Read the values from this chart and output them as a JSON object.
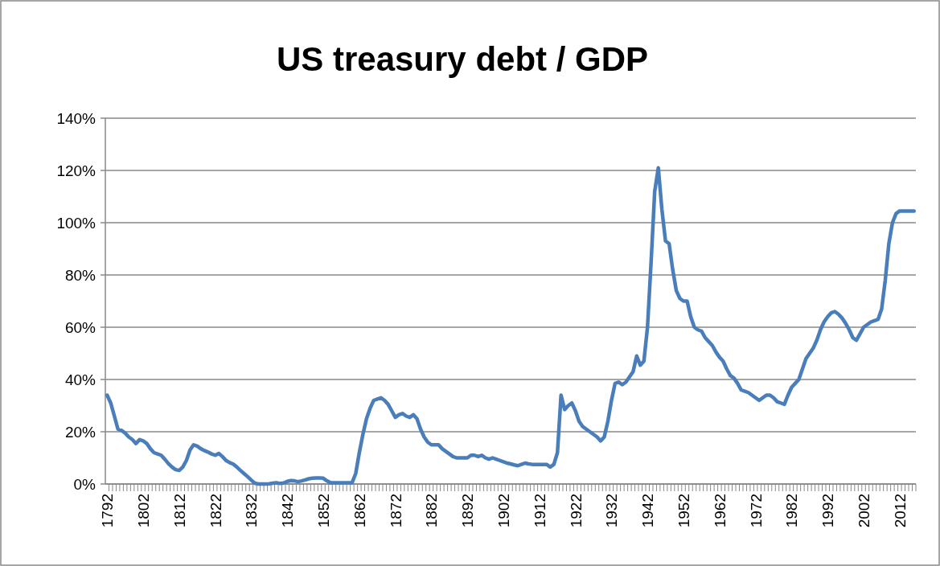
{
  "chart_data": {
    "type": "line",
    "title": "US treasury debt / GDP",
    "categories": [
      "1792",
      null,
      null,
      null,
      null,
      null,
      null,
      null,
      null,
      null,
      "1802",
      null,
      null,
      null,
      null,
      null,
      null,
      null,
      null,
      null,
      "1812",
      null,
      null,
      null,
      null,
      null,
      null,
      null,
      null,
      null,
      "1822",
      null,
      null,
      null,
      null,
      null,
      null,
      null,
      null,
      null,
      "1832",
      null,
      null,
      null,
      null,
      null,
      null,
      null,
      null,
      null,
      "1842",
      null,
      null,
      null,
      null,
      null,
      null,
      null,
      null,
      null,
      "1852",
      null,
      null,
      null,
      null,
      null,
      null,
      null,
      null,
      null,
      "1862",
      null,
      null,
      null,
      null,
      null,
      null,
      null,
      null,
      null,
      "1872",
      null,
      null,
      null,
      null,
      null,
      null,
      null,
      null,
      null,
      "1882",
      null,
      null,
      null,
      null,
      null,
      null,
      null,
      null,
      null,
      "1892",
      null,
      null,
      null,
      null,
      null,
      null,
      null,
      null,
      null,
      "1902",
      null,
      null,
      null,
      null,
      null,
      null,
      null,
      null,
      null,
      "1912",
      null,
      null,
      null,
      null,
      null,
      null,
      null,
      null,
      null,
      "1922",
      null,
      null,
      null,
      null,
      null,
      null,
      null,
      null,
      null,
      "1932",
      null,
      null,
      null,
      null,
      null,
      null,
      null,
      null,
      null,
      "1942",
      null,
      null,
      null,
      null,
      null,
      null,
      null,
      null,
      null,
      "1952",
      null,
      null,
      null,
      null,
      null,
      null,
      null,
      null,
      null,
      "1962",
      null,
      null,
      null,
      null,
      null,
      null,
      null,
      null,
      null,
      "1972",
      null,
      null,
      null,
      null,
      null,
      null,
      null,
      null,
      null,
      "1982",
      null,
      null,
      null,
      null,
      null,
      null,
      null,
      null,
      null,
      "1992",
      null,
      null,
      null,
      null,
      null,
      null,
      null,
      null,
      null,
      "2002",
      null,
      null,
      null,
      null,
      null,
      null,
      null,
      null,
      null,
      "2012",
      null,
      null,
      null,
      null
    ],
    "series": [
      {
        "color": "#4a7ebb",
        "values": [
          34,
          31,
          26,
          21,
          20.5,
          19.5,
          18,
          17,
          15.5,
          17,
          16.5,
          15.5,
          13.5,
          12,
          11.5,
          11,
          9.5,
          7.8,
          6.5,
          5.5,
          5.2,
          6.5,
          9,
          13,
          15,
          14.5,
          13.5,
          12.8,
          12.2,
          11.5,
          11,
          11.7,
          10.5,
          9,
          8.2,
          7.6,
          6.5,
          5.2,
          4,
          2.8,
          1.5,
          0.3,
          0,
          0,
          0,
          0.1,
          0.3,
          0.5,
          0.2,
          0.4,
          1,
          1.3,
          1.2,
          0.9,
          1.2,
          1.6,
          2,
          2.2,
          2.3,
          2.3,
          2.2,
          1.2,
          0.5,
          0.5,
          0.5,
          0.5,
          0.5,
          0.5,
          0.5,
          4,
          12,
          19,
          25,
          29,
          32,
          32.5,
          33,
          32,
          30.5,
          28,
          25.5,
          26.5,
          27,
          26,
          25.5,
          26.5,
          25,
          21,
          18,
          16,
          15,
          15,
          15,
          13.5,
          12.5,
          11.5,
          10.5,
          10,
          10,
          10,
          10,
          11,
          11,
          10.5,
          11,
          10,
          9.5,
          10,
          9.5,
          9,
          8.5,
          8,
          7.7,
          7.3,
          7,
          7.5,
          8,
          7.7,
          7.5,
          7.5,
          7.5,
          7.5,
          7.5,
          6.5,
          7.5,
          12,
          34,
          28.5,
          30,
          31,
          28,
          24,
          22,
          21,
          20,
          19,
          18,
          16.5,
          18,
          24,
          32,
          38.5,
          39,
          38,
          39,
          41,
          43,
          49,
          45.5,
          47,
          60,
          85,
          112,
          121,
          105,
          93,
          92,
          82,
          74,
          71,
          70,
          70,
          64,
          60,
          59,
          58.5,
          56,
          54.5,
          53,
          50.5,
          48.5,
          47,
          44,
          41.5,
          40.5,
          38.5,
          36,
          35.5,
          35,
          34,
          33,
          32,
          33,
          34,
          34,
          33,
          31.5,
          31,
          30.5,
          34,
          37,
          38.5,
          40,
          44,
          48,
          50,
          52,
          55,
          59,
          62,
          64,
          65.5,
          66,
          65,
          63.5,
          61.5,
          59,
          56,
          55,
          57.5,
          60,
          61,
          62,
          62.5,
          63,
          67,
          78,
          92,
          100,
          103.5,
          104.5,
          104.5,
          104.5,
          104.5,
          104.5
        ]
      }
    ],
    "ylim": [
      0,
      140
    ],
    "yticks": [
      {
        "value": 0,
        "label": "0%"
      },
      {
        "value": 20,
        "label": "20%"
      },
      {
        "value": 40,
        "label": "40%"
      },
      {
        "value": 60,
        "label": "60%"
      },
      {
        "value": 80,
        "label": "80%"
      },
      {
        "value": 100,
        "label": "100%"
      },
      {
        "value": 120,
        "label": "120%"
      },
      {
        "value": 140,
        "label": "140%"
      }
    ],
    "grid": "y",
    "marker": "none",
    "line_style": "solid"
  }
}
